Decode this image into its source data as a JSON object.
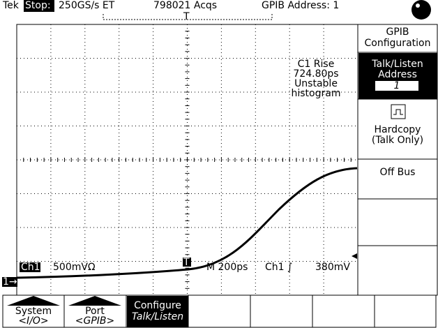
{
  "status_bar": {
    "brand": "Tek",
    "state": "Stop:",
    "sample_rate": "250GS/s ET",
    "acquisitions": "798021 Acqs",
    "gpib_address": "GPIB Address: 1"
  },
  "measurement": {
    "label": "C1 Rise",
    "value": "724.80ps",
    "status": "Unstable",
    "note": "histogram"
  },
  "readout": {
    "channel": "Ch1",
    "scale": "500mVΩ",
    "timebase": "M  200ps",
    "trigger_source": "Ch1 ∫",
    "trigger_level": "380mV"
  },
  "markers": {
    "trigger": "T",
    "channel": "1→"
  },
  "side_menu": {
    "title": [
      "GPIB",
      "Configuration"
    ],
    "talk_listen": [
      "Talk/Listen",
      "Address"
    ],
    "address_value": "1",
    "hardcopy": [
      "Hardcopy",
      "(Talk Only)"
    ],
    "off_bus": "Off Bus"
  },
  "bottom_menu": {
    "buttons": [
      {
        "label": "System",
        "sub": "<I/O>"
      },
      {
        "label": "Port",
        "sub": "<GPIB>"
      },
      {
        "label": "Configure",
        "sub": "Talk/Listen"
      }
    ]
  }
}
